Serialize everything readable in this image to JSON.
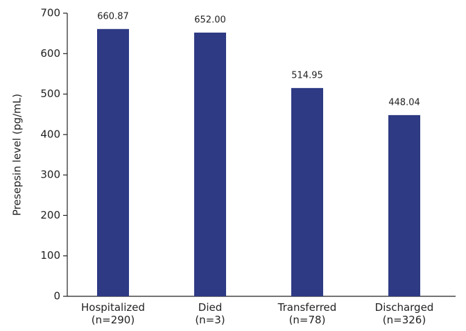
{
  "chart_data": {
    "type": "bar",
    "y_label": "Presepsin level (pg/mL)",
    "categories": [
      "Hospitalized\n(n=290)",
      "Died\n(n=3)",
      "Transferred\n(n=78)",
      "Discharged\n(n=326)"
    ],
    "values": [
      660.87,
      652.0,
      514.95,
      448.04
    ],
    "value_labels": [
      "660.87",
      "652.00",
      "514.95",
      "448.04"
    ],
    "color": "#2e3a84",
    "ylim": [
      0,
      700
    ],
    "yticks": [
      0,
      100,
      200,
      300,
      400,
      500,
      600,
      700
    ],
    "grid": false
  }
}
